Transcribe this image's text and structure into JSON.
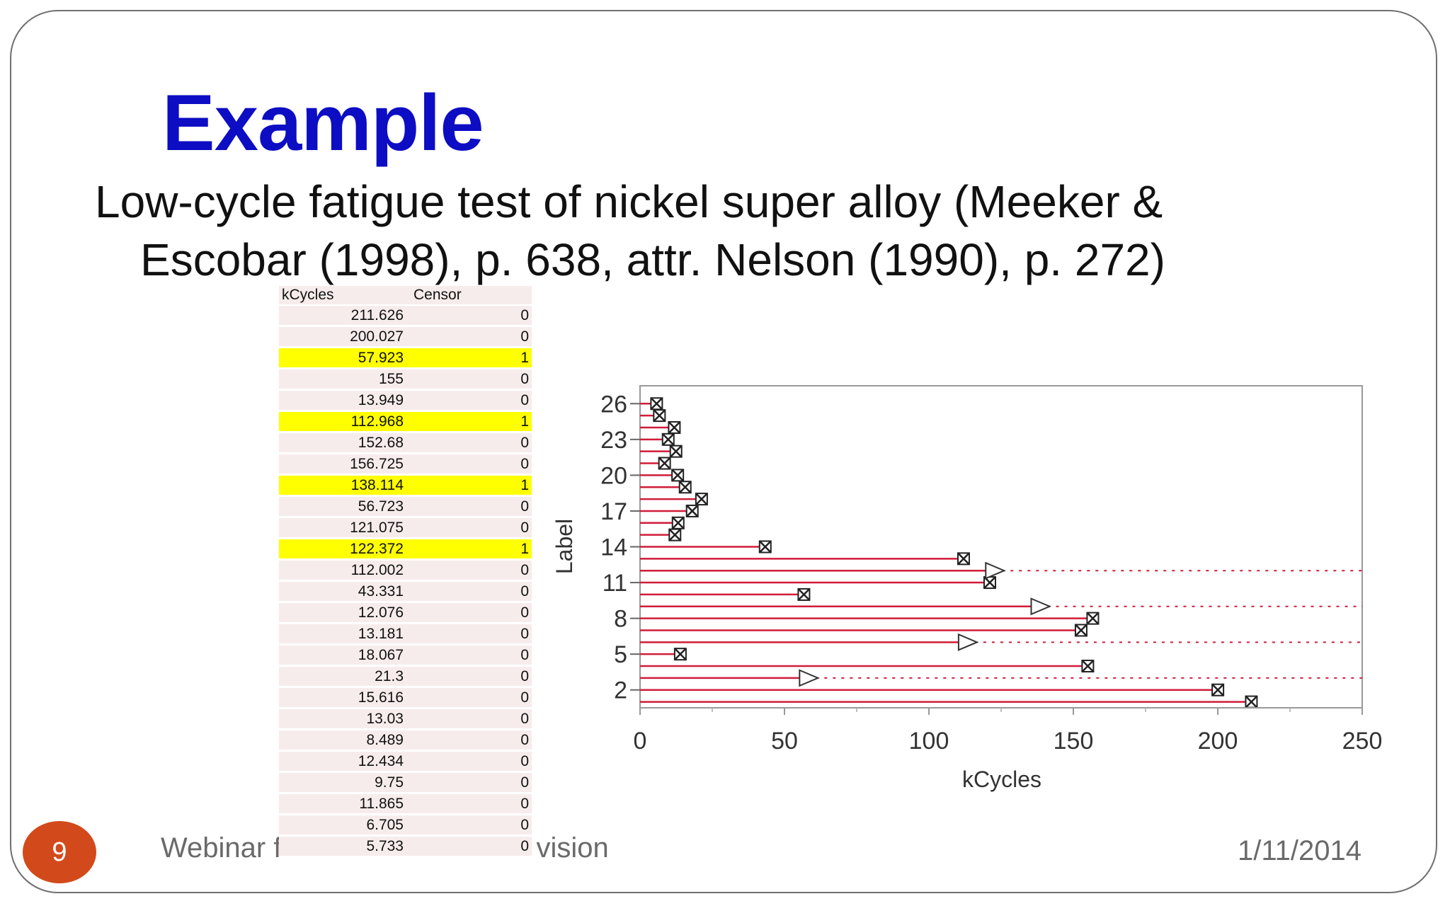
{
  "slide": {
    "title": "Example",
    "subtitle_line1": "Low-cycle fatigue test of nickel super alloy (Meeker &",
    "subtitle_line2": "Escobar (1998), p. 638, attr. Nelson (1990), p. 272)",
    "footer_text": "Webinar f",
    "footer_text_tail": "vision",
    "date": "1/11/2014",
    "page_number": "9"
  },
  "colors": {
    "title": "#0d0dc4",
    "bar": "#d01c3a",
    "highlight": "#ffff00",
    "badge": "#d24a1b"
  },
  "table": {
    "headers": [
      "kCycles",
      "Censor"
    ],
    "rows": [
      {
        "kcycles": "211.626",
        "censor": "0",
        "highlight": false
      },
      {
        "kcycles": "200.027",
        "censor": "0",
        "highlight": false
      },
      {
        "kcycles": "57.923",
        "censor": "1",
        "highlight": true
      },
      {
        "kcycles": "155",
        "censor": "0",
        "highlight": false
      },
      {
        "kcycles": "13.949",
        "censor": "0",
        "highlight": false
      },
      {
        "kcycles": "112.968",
        "censor": "1",
        "highlight": true
      },
      {
        "kcycles": "152.68",
        "censor": "0",
        "highlight": false
      },
      {
        "kcycles": "156.725",
        "censor": "0",
        "highlight": false
      },
      {
        "kcycles": "138.114",
        "censor": "1",
        "highlight": true
      },
      {
        "kcycles": "56.723",
        "censor": "0",
        "highlight": false
      },
      {
        "kcycles": "121.075",
        "censor": "0",
        "highlight": false
      },
      {
        "kcycles": "122.372",
        "censor": "1",
        "highlight": true
      },
      {
        "kcycles": "112.002",
        "censor": "0",
        "highlight": false
      },
      {
        "kcycles": "43.331",
        "censor": "0",
        "highlight": false
      },
      {
        "kcycles": "12.076",
        "censor": "0",
        "highlight": false
      },
      {
        "kcycles": "13.181",
        "censor": "0",
        "highlight": false
      },
      {
        "kcycles": "18.067",
        "censor": "0",
        "highlight": false
      },
      {
        "kcycles": "21.3",
        "censor": "0",
        "highlight": false
      },
      {
        "kcycles": "15.616",
        "censor": "0",
        "highlight": false
      },
      {
        "kcycles": "13.03",
        "censor": "0",
        "highlight": false
      },
      {
        "kcycles": "8.489",
        "censor": "0",
        "highlight": false
      },
      {
        "kcycles": "12.434",
        "censor": "0",
        "highlight": false
      },
      {
        "kcycles": "9.75",
        "censor": "0",
        "highlight": false
      },
      {
        "kcycles": "11.865",
        "censor": "0",
        "highlight": false
      },
      {
        "kcycles": "6.705",
        "censor": "0",
        "highlight": false
      },
      {
        "kcycles": "5.733",
        "censor": "0",
        "highlight": false
      }
    ]
  },
  "chart_data": {
    "type": "bar",
    "orientation": "horizontal",
    "title": "",
    "xlabel": "kCycles",
    "ylabel": "Label",
    "xlim": [
      0,
      250
    ],
    "xticks": [
      0,
      50,
      100,
      150,
      200,
      250
    ],
    "yticks": [
      2,
      5,
      8,
      11,
      14,
      17,
      20,
      23,
      26
    ],
    "ylim": [
      0.5,
      27.5
    ],
    "grid": false,
    "labels": [
      1,
      2,
      3,
      4,
      5,
      6,
      7,
      8,
      9,
      10,
      11,
      12,
      13,
      14,
      15,
      16,
      17,
      18,
      19,
      20,
      21,
      22,
      23,
      24,
      25,
      26
    ],
    "values": [
      211.626,
      200.027,
      57.923,
      155,
      13.949,
      112.968,
      152.68,
      156.725,
      138.114,
      56.723,
      121.075,
      122.372,
      112.002,
      43.331,
      12.076,
      13.181,
      18.067,
      21.3,
      15.616,
      13.03,
      8.489,
      12.434,
      9.75,
      11.865,
      6.705,
      5.733
    ],
    "censored": [
      0,
      0,
      1,
      0,
      0,
      1,
      0,
      0,
      1,
      0,
      0,
      1,
      0,
      0,
      0,
      0,
      0,
      0,
      0,
      0,
      0,
      0,
      0,
      0,
      0,
      0
    ],
    "markers": {
      "failure": "x-square",
      "censored": "open-triangle"
    }
  }
}
